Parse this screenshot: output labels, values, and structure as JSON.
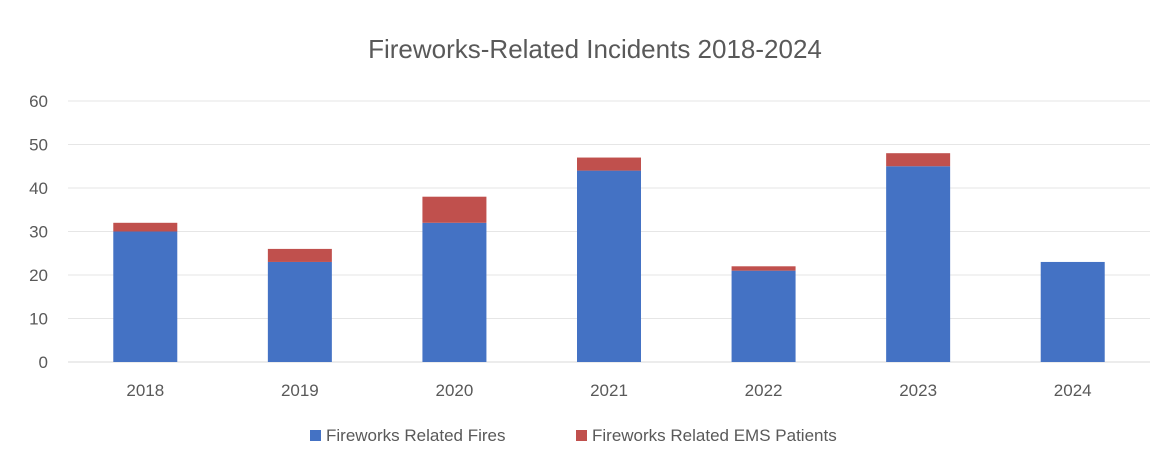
{
  "chart_data": {
    "type": "bar",
    "stacked": true,
    "title": "Fireworks-Related Incidents 2018-2024",
    "xlabel": "",
    "ylabel": "",
    "categories": [
      "2018",
      "2019",
      "2020",
      "2021",
      "2022",
      "2023",
      "2024"
    ],
    "series": [
      {
        "name": "Fireworks Related Fires",
        "color": "#4472c4",
        "values": [
          30,
          23,
          32,
          44,
          21,
          45,
          23
        ]
      },
      {
        "name": "Fireworks Related EMS Patients",
        "color": "#c0504d",
        "values": [
          2,
          3,
          6,
          3,
          1,
          3,
          0
        ]
      }
    ],
    "ylim": [
      0,
      60
    ],
    "yticks": [
      "0",
      "10",
      "20",
      "30",
      "40",
      "50",
      "60"
    ],
    "grid": true,
    "legend_position": "bottom"
  }
}
